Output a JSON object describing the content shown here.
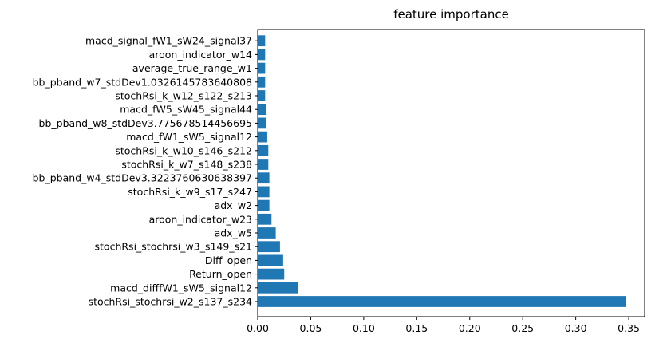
{
  "chart_data": {
    "type": "bar",
    "orientation": "horizontal",
    "title": "feature importance",
    "xlabel": "",
    "ylabel": "",
    "xlim": [
      0,
      0.365
    ],
    "xticks": [
      0.0,
      0.05,
      0.1,
      0.15,
      0.2,
      0.25,
      0.3,
      0.35
    ],
    "xtick_labels": [
      "0.00",
      "0.05",
      "0.10",
      "0.15",
      "0.20",
      "0.25",
      "0.30",
      "0.35"
    ],
    "categories": [
      "stochRsi_stochrsi_w2_s137_s234",
      "macd_difffW1_sW5_signal12",
      "Return_open",
      "Diff_open",
      "stochRsi_stochrsi_w3_s149_s21",
      "adx_w5",
      "aroon_indicator_w23",
      "adx_w2",
      "stochRsi_k_w9_s17_s247",
      "bb_pband_w4_stdDev3.3223760630638397",
      "stochRsi_k_w7_s148_s238",
      "stochRsi_k_w10_s146_s212",
      "macd_fW1_sW5_signal12",
      "bb_pband_w8_stdDev3.775678514456695",
      "macd_fW5_sW45_signal44",
      "stochRsi_k_w12_s122_s213",
      "bb_pband_w7_stdDev1.0326145783640808",
      "average_true_range_w1",
      "aroon_indicator_w14",
      "macd_signal_fW1_sW24_signal37"
    ],
    "values": [
      0.347,
      0.038,
      0.025,
      0.024,
      0.021,
      0.017,
      0.013,
      0.011,
      0.011,
      0.011,
      0.01,
      0.01,
      0.009,
      0.008,
      0.008,
      0.007,
      0.007,
      0.007,
      0.007,
      0.007
    ],
    "bar_color": "#1f77b4",
    "grid": false
  }
}
